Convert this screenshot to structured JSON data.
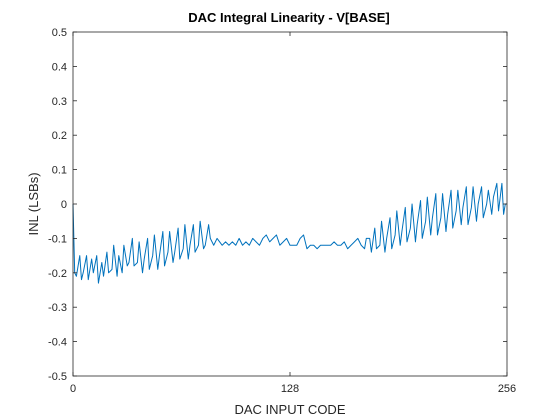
{
  "chart_data": {
    "type": "line",
    "title": "DAC Integral Linearity - V[BASE]",
    "xlabel": "DAC INPUT CODE",
    "ylabel": "INL (LSBs)",
    "xlim": [
      0,
      256
    ],
    "ylim": [
      -0.5,
      0.5
    ],
    "xticks": [
      0,
      128,
      256
    ],
    "yticks": [
      -0.5,
      -0.4,
      -0.3,
      -0.2,
      -0.1,
      0,
      0.1,
      0.2,
      0.3,
      0.4,
      0.5
    ],
    "xtick_labels": [
      "0",
      "128",
      "256"
    ],
    "ytick_labels": [
      "-0.5",
      "-0.4",
      "-0.3",
      "-0.2",
      "-0.1",
      "0",
      "0.1",
      "0.2",
      "0.3",
      "0.4",
      "0.5"
    ],
    "grid": false,
    "box": true,
    "series": [
      {
        "color": "#0072BD",
        "x": [
          0,
          1,
          2,
          4,
          5,
          6,
          8,
          9,
          11,
          12,
          14,
          15,
          17,
          18,
          20,
          21,
          23,
          24,
          26,
          27,
          29,
          30,
          32,
          33,
          35,
          36,
          38,
          39,
          41,
          42,
          44,
          45,
          47,
          48,
          50,
          51,
          53,
          54,
          56,
          57,
          59,
          60,
          62,
          63,
          65,
          66,
          68,
          69,
          71,
          72,
          74,
          75,
          77,
          78,
          80,
          81,
          83,
          85,
          88,
          90,
          92,
          94,
          96,
          98,
          100,
          102,
          104,
          106,
          108,
          110,
          112,
          114,
          116,
          118,
          120,
          122,
          124,
          126,
          128,
          130,
          132,
          134,
          136,
          138,
          140,
          142,
          144,
          146,
          148,
          150,
          152,
          154,
          156,
          158,
          160,
          162,
          164,
          166,
          168,
          170,
          172,
          173,
          175,
          176,
          178,
          179,
          181,
          182,
          184,
          185,
          187,
          188,
          190,
          191,
          193,
          194,
          196,
          197,
          199,
          200,
          202,
          203,
          205,
          206,
          208,
          209,
          211,
          212,
          214,
          215,
          217,
          218,
          220,
          221,
          223,
          224,
          226,
          227,
          229,
          230,
          232,
          233,
          235,
          236,
          238,
          239,
          241,
          242,
          244,
          245,
          247,
          248,
          250,
          251,
          253,
          254,
          255,
          256
        ],
        "y": [
          0.0,
          -0.2,
          -0.21,
          -0.15,
          -0.22,
          -0.2,
          -0.15,
          -0.22,
          -0.16,
          -0.2,
          -0.15,
          -0.23,
          -0.17,
          -0.21,
          -0.14,
          -0.2,
          -0.19,
          -0.12,
          -0.21,
          -0.15,
          -0.2,
          -0.12,
          -0.18,
          -0.17,
          -0.1,
          -0.18,
          -0.17,
          -0.11,
          -0.2,
          -0.16,
          -0.1,
          -0.19,
          -0.15,
          -0.09,
          -0.19,
          -0.15,
          -0.08,
          -0.18,
          -0.14,
          -0.08,
          -0.17,
          -0.14,
          -0.07,
          -0.16,
          -0.13,
          -0.06,
          -0.16,
          -0.12,
          -0.06,
          -0.14,
          -0.12,
          -0.05,
          -0.13,
          -0.12,
          -0.06,
          -0.1,
          -0.12,
          -0.1,
          -0.12,
          -0.11,
          -0.12,
          -0.11,
          -0.12,
          -0.1,
          -0.12,
          -0.11,
          -0.12,
          -0.1,
          -0.11,
          -0.12,
          -0.1,
          -0.09,
          -0.11,
          -0.1,
          -0.09,
          -0.12,
          -0.11,
          -0.1,
          -0.12,
          -0.12,
          -0.12,
          -0.1,
          -0.09,
          -0.13,
          -0.12,
          -0.12,
          -0.13,
          -0.12,
          -0.12,
          -0.12,
          -0.12,
          -0.11,
          -0.12,
          -0.12,
          -0.11,
          -0.13,
          -0.12,
          -0.11,
          -0.1,
          -0.12,
          -0.13,
          -0.1,
          -0.1,
          -0.14,
          -0.07,
          -0.13,
          -0.12,
          -0.05,
          -0.14,
          -0.1,
          -0.04,
          -0.13,
          -0.09,
          -0.02,
          -0.12,
          -0.08,
          -0.01,
          -0.11,
          -0.07,
          0.0,
          -0.11,
          -0.06,
          0.01,
          -0.1,
          -0.05,
          0.02,
          -0.09,
          -0.04,
          0.03,
          -0.09,
          -0.04,
          0.03,
          -0.08,
          -0.03,
          0.04,
          -0.07,
          -0.02,
          0.04,
          -0.06,
          -0.01,
          0.05,
          -0.06,
          -0.01,
          0.05,
          -0.05,
          0.0,
          0.05,
          -0.04,
          0.0,
          0.04,
          -0.03,
          0.02,
          0.06,
          -0.02,
          0.06,
          -0.03,
          0.0,
          0.0
        ]
      }
    ]
  }
}
